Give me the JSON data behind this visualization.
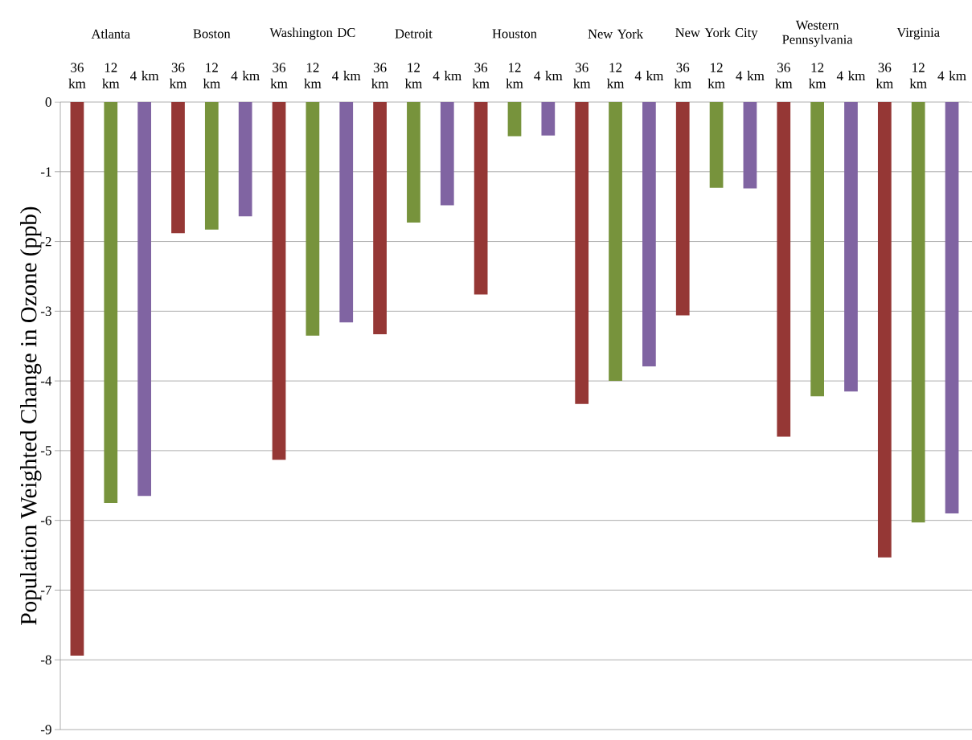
{
  "chart_data": {
    "type": "bar",
    "ylabel": "Population Weighted Change in Ozone (ppb)",
    "categories": [
      "Atlanta",
      "Boston",
      "Washington DC",
      "Detroit",
      "Houston",
      "New York",
      "New York City",
      "Western Pennsylvania",
      "Virginia"
    ],
    "series": [
      {
        "name": "36 km",
        "color": "#953735",
        "values": [
          -7.94,
          -1.88,
          -5.13,
          -3.33,
          -2.76,
          -4.33,
          -3.06,
          -4.8,
          -6.53
        ]
      },
      {
        "name": "12 km",
        "color": "#77933c",
        "values": [
          -5.75,
          -1.83,
          -3.35,
          -1.73,
          -0.49,
          -4.0,
          -1.23,
          -4.22,
          -6.03
        ]
      },
      {
        "name": "4 km",
        "color": "#8064a2",
        "values": [
          -5.65,
          -1.64,
          -3.16,
          -1.48,
          -0.48,
          -3.79,
          -1.24,
          -4.15,
          -5.9
        ]
      }
    ],
    "ylim": [
      -9,
      0
    ],
    "yticks": [
      -9,
      -8,
      -7,
      -6,
      -5,
      -4,
      -3,
      -2,
      -1,
      0
    ],
    "grid": "y"
  }
}
